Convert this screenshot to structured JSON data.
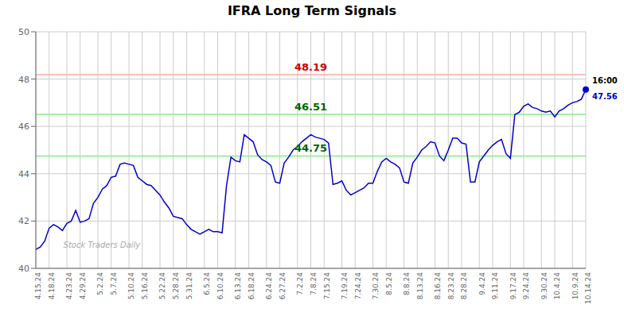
{
  "chart_data": {
    "type": "line",
    "title": "IFRA Long Term Signals",
    "categories": [
      "4.15.24",
      null,
      null,
      "4.18.24",
      null,
      null,
      null,
      "4.23.24",
      null,
      null,
      "4.29.24",
      null,
      null,
      null,
      "5.2.24",
      null,
      null,
      "5.7.24",
      null,
      null,
      null,
      "5.10.24",
      null,
      null,
      "5.16.24",
      null,
      null,
      null,
      "5.22.24",
      null,
      null,
      "5.28.24",
      null,
      null,
      "5.31.24",
      null,
      null,
      null,
      "6.5.24",
      null,
      null,
      "6.10.24",
      null,
      null,
      null,
      "6.13.24",
      null,
      null,
      "6.18.24",
      null,
      null,
      null,
      "6.24.24",
      null,
      null,
      "6.27.24",
      null,
      null,
      null,
      "7.2.24",
      null,
      null,
      "7.8.24",
      null,
      null,
      "7.15.24",
      null,
      null,
      null,
      "7.19.24",
      null,
      null,
      "7.24.24",
      null,
      null,
      null,
      "7.30.24",
      null,
      null,
      "8.5.24",
      null,
      null,
      null,
      "8.8.24",
      null,
      null,
      "8.13.24",
      null,
      null,
      null,
      "8.16.24",
      null,
      null,
      "8.23.24",
      null,
      null,
      "8.28.24",
      null,
      null,
      null,
      "9.4.24",
      null,
      null,
      "9.11.24",
      null,
      null,
      null,
      "9.17.24",
      null,
      null,
      "9.24.24",
      null,
      null,
      null,
      "9.30.24",
      null,
      null,
      "10.4.24",
      null,
      null,
      null,
      "10.9.24",
      null,
      null,
      "10.14.24"
    ],
    "values": [
      40.8,
      40.9,
      41.15,
      41.7,
      41.85,
      41.75,
      41.6,
      41.9,
      42.0,
      42.45,
      41.95,
      42.0,
      42.1,
      42.75,
      43.0,
      43.35,
      43.5,
      43.85,
      43.9,
      44.4,
      44.45,
      44.4,
      44.35,
      43.85,
      43.7,
      43.55,
      43.5,
      43.3,
      43.1,
      42.8,
      42.55,
      42.2,
      42.15,
      42.1,
      41.85,
      41.65,
      41.55,
      41.45,
      41.55,
      41.65,
      41.55,
      41.55,
      41.5,
      43.5,
      44.7,
      44.55,
      44.5,
      45.65,
      45.5,
      45.35,
      44.8,
      44.6,
      44.5,
      44.35,
      43.65,
      43.6,
      44.45,
      44.7,
      45.0,
      45.15,
      45.35,
      45.5,
      45.65,
      45.55,
      45.5,
      45.45,
      45.3,
      43.55,
      43.6,
      43.7,
      43.3,
      43.1,
      43.2,
      43.3,
      43.4,
      43.6,
      43.6,
      44.1,
      44.5,
      44.65,
      44.5,
      44.4,
      44.25,
      43.65,
      43.6,
      44.45,
      44.7,
      45.0,
      45.15,
      45.35,
      45.3,
      44.75,
      44.55,
      45.0,
      45.5,
      45.5,
      45.3,
      45.25,
      43.65,
      43.65,
      44.5,
      44.75,
      45.0,
      45.2,
      45.35,
      45.45,
      44.85,
      44.65,
      46.5,
      46.6,
      46.85,
      46.95,
      46.8,
      46.75,
      46.65,
      46.6,
      46.65,
      46.4,
      46.65,
      46.75,
      46.9,
      47.0,
      47.05,
      47.15,
      47.56
    ],
    "color": "#0000cc",
    "ylim": [
      40,
      50
    ],
    "yticks": [
      40,
      42,
      44,
      46,
      48,
      50
    ],
    "grid": true,
    "reference_lines": [
      {
        "value": 48.19,
        "color": "#ffaaaa",
        "label": "48.19",
        "label_color": "#cc0000"
      },
      {
        "value": 46.51,
        "color": "#88ee88",
        "label": "46.51",
        "label_color": "#006600"
      },
      {
        "value": 44.75,
        "color": "#88ee88",
        "label": "44.75",
        "label_color": "#006600"
      }
    ],
    "last_point": {
      "time_label": "16:00",
      "value_label": "47.56",
      "color": "#0000cc"
    },
    "watermark": "Stock Traders Daily"
  }
}
